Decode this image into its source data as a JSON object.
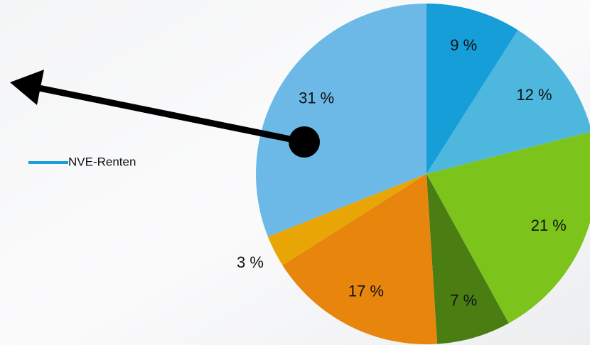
{
  "chart_data": {
    "type": "pie",
    "series_name": "NVE-Renten",
    "legend_color": "#1a9fd9",
    "categories": [
      null,
      null,
      null,
      null,
      null,
      null,
      null
    ],
    "values": [
      9,
      12,
      21,
      7,
      17,
      3,
      31
    ],
    "value_labels": [
      "9 %",
      "12 %",
      "21 %",
      "7 %",
      "17 %",
      "3 %",
      "31 %"
    ],
    "colors": [
      "#159ed8",
      "#4db7de",
      "#7cc41c",
      "#4a7d12",
      "#e8850c",
      "#e7a605",
      "#6cb9e8"
    ]
  }
}
